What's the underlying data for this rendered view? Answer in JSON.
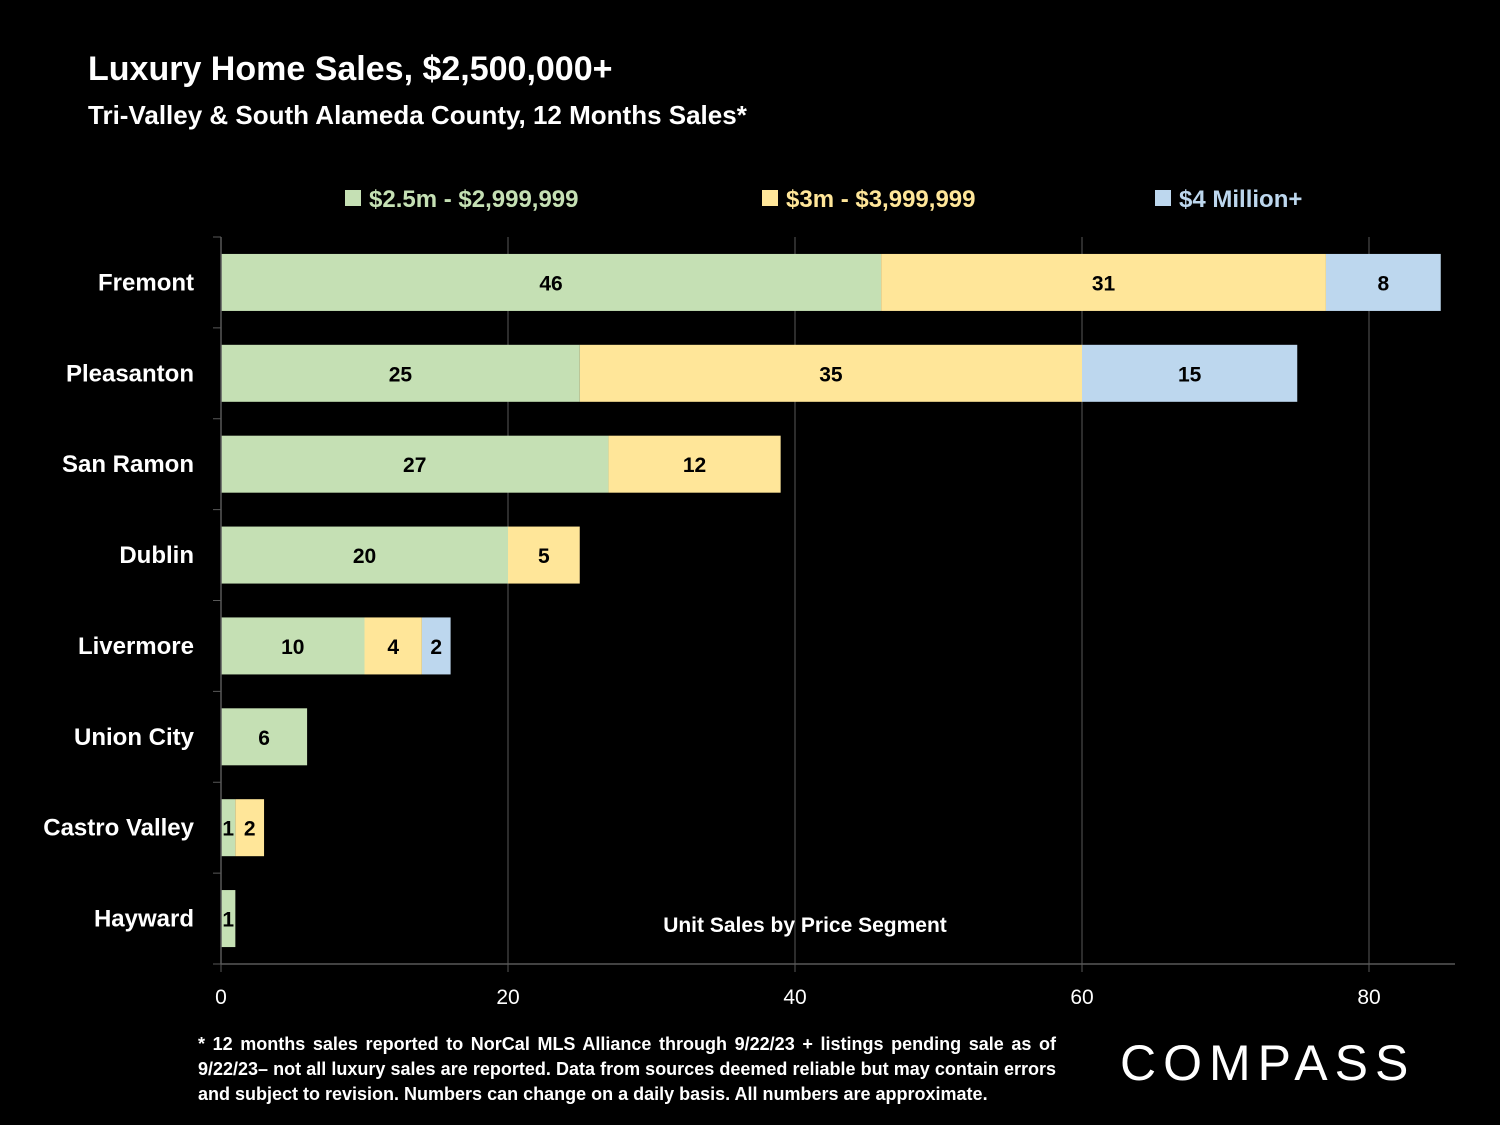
{
  "title": "Luxury Home Sales, $2,500,000+",
  "subtitle": "Tri-Valley & South Alameda County, 12 Months Sales*",
  "footnote": "* 12 months sales reported to NorCal MLS Alliance through 9/22/23 + listings pending sale as of 9/22/23– not all luxury sales are reported. Data from sources deemed reliable but may contain errors and subject to revision. Numbers can change on a daily basis. All numbers are approximate.",
  "logo": "COMPASS",
  "colors": {
    "background": "#000000",
    "series_2_5m": "#c5e0b4",
    "series_3m": "#ffe699",
    "series_4m": "#bdd7ee",
    "grid": "#595959"
  },
  "chart_data": {
    "type": "bar",
    "orientation": "horizontal",
    "stacked": true,
    "categories": [
      "Fremont",
      "Pleasanton",
      "San Ramon",
      "Dublin",
      "Livermore",
      "Union City",
      "Castro Valley",
      "Hayward"
    ],
    "series": [
      {
        "name": "$2.5m - $2,999,999",
        "color": "#c5e0b4",
        "values": [
          46,
          25,
          27,
          20,
          10,
          6,
          1,
          1
        ]
      },
      {
        "name": "$3m - $3,999,999",
        "color": "#ffe699",
        "values": [
          31,
          35,
          12,
          5,
          4,
          0,
          2,
          0
        ]
      },
      {
        "name": "$4 Million+",
        "color": "#bdd7ee",
        "values": [
          8,
          15,
          0,
          0,
          2,
          0,
          0,
          0
        ]
      }
    ],
    "xlabel": "Unit Sales by Price Segment",
    "xlim": [
      0,
      86
    ],
    "xticks": [
      "0",
      "20",
      "40",
      "60",
      "80"
    ],
    "grid": true,
    "legend": "top"
  }
}
